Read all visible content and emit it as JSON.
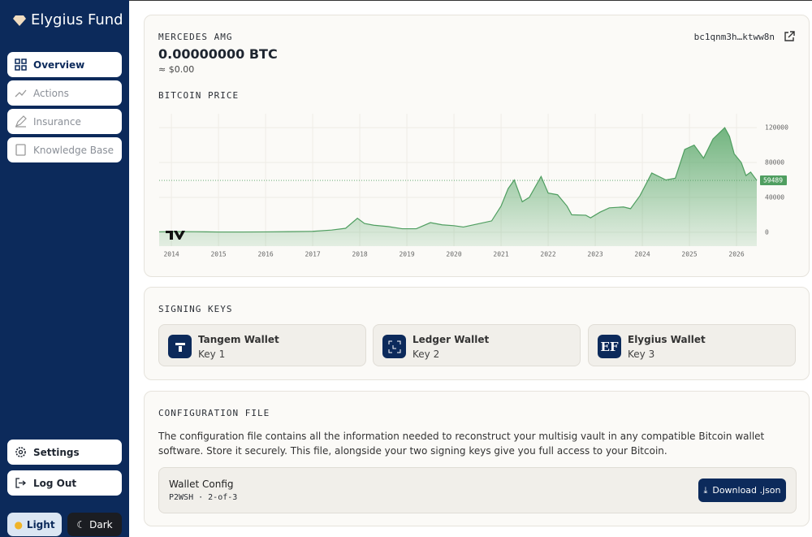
{
  "sidebar": {
    "brand": "Elygius Fund",
    "nav": [
      "Overview",
      "Actions",
      "Insurance",
      "Knowledge Base"
    ],
    "settings": "Settings",
    "logout": "Log Out",
    "theme": [
      "Light",
      "Dark"
    ]
  },
  "wallet": {
    "name": "MERCEDES AMG",
    "balance": "0.00000000 BTC",
    "fiat": "≈ $0.00",
    "address": "bc1qnm3h…ktww8n"
  },
  "chart_data": {
    "type": "area",
    "title": "BITCOIN PRICE",
    "color": "#4f9e60",
    "x": [
      2013.74,
      2014.0,
      2014.5,
      2015.0,
      2015.5,
      2016.0,
      2016.5,
      2017.0,
      2017.4,
      2017.7,
      2017.95,
      2018.1,
      2018.3,
      2018.6,
      2018.9,
      2019.2,
      2019.5,
      2019.75,
      2020.0,
      2020.2,
      2020.5,
      2020.8,
      2021.0,
      2021.15,
      2021.28,
      2021.45,
      2021.6,
      2021.85,
      2022.0,
      2022.2,
      2022.4,
      2022.5,
      2022.8,
      2022.9,
      2023.1,
      2023.3,
      2023.6,
      2023.75,
      2023.95,
      2024.2,
      2024.5,
      2024.7,
      2024.9,
      2025.1,
      2025.3,
      2025.5,
      2025.75,
      2025.85,
      2025.95,
      2026.1,
      2026.2,
      2026.3,
      2026.43
    ],
    "values": [
      500,
      700,
      600,
      250,
      250,
      400,
      650,
      1000,
      2500,
      4500,
      16000,
      10000,
      8000,
      6500,
      4000,
      4000,
      11000,
      8500,
      7500,
      6000,
      9500,
      13000,
      30000,
      50000,
      60000,
      35000,
      40000,
      64000,
      45000,
      43000,
      30000,
      20000,
      19500,
      16500,
      23000,
      28000,
      29000,
      27000,
      42000,
      68000,
      60000,
      62000,
      95000,
      100000,
      85000,
      107000,
      120000,
      110000,
      90000,
      80000,
      65000,
      69000,
      59489
    ],
    "xlim": [
      2013.74,
      2026.43
    ],
    "xticks": [
      2014,
      2015,
      2016,
      2017,
      2018,
      2019,
      2020,
      2021,
      2022,
      2023,
      2024,
      2025,
      2026
    ],
    "ylim": [
      -16000,
      136000
    ],
    "yticks": [
      0,
      40000,
      80000,
      120000
    ],
    "grid": true
  },
  "signing_keys": {
    "title": "SIGNING KEYS",
    "keys": [
      {
        "name": "Tangem Wallet",
        "label": "Key 1"
      },
      {
        "name": "Ledger Wallet",
        "label": "Key 2"
      },
      {
        "name": "Elygius Wallet",
        "label": "Key 3",
        "icon": "EF"
      }
    ]
  },
  "config": {
    "title": "CONFIGURATION FILE",
    "description": "The configuration file contains all the information needed to reconstruct your multisig vault in any compatible Bitcoin wallet software. Store it securely. This file, alongside your two signing keys give you full access to your Bitcoin.",
    "box_title": "Wallet Config",
    "box_subtitle": "P2WSH · 2-of-3",
    "button": "Download .json"
  }
}
